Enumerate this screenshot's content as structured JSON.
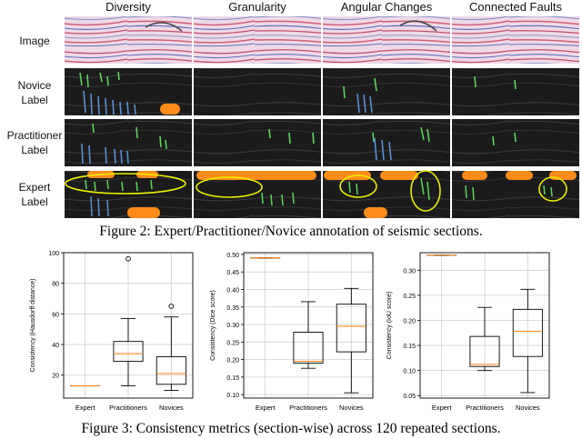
{
  "figure2": {
    "columns": [
      "Diversity",
      "Granularity",
      "Angular Changes",
      "Connected Faults"
    ],
    "rows": [
      {
        "label_lines": [
          "Image"
        ]
      },
      {
        "label_lines": [
          "Novice",
          "Label"
        ]
      },
      {
        "label_lines": [
          "Practitioner",
          "Label"
        ]
      },
      {
        "label_lines": [
          "Expert",
          "Label"
        ]
      }
    ],
    "caption": "Figure 2: Expert/Practitioner/Novice annotation of seismic sections."
  },
  "figure3": {
    "caption": "Figure 3: Consistency metrics (section-wise) across 120 repeated sections."
  },
  "colors": {
    "orange_highlight": "#ff8c1a",
    "green_label": "#5fd35f",
    "blue_label": "#5b8fd6",
    "yellow_ellipse": "#e8f000",
    "median_line": "#ff7f0e"
  },
  "chart_data": [
    {
      "type": "box",
      "categories": [
        "Expert",
        "Practitioners",
        "Novices"
      ],
      "ylabel": "Consistency (Hausdorff distance)",
      "ylim": [
        5,
        100
      ],
      "yticks": [
        20,
        40,
        60,
        80,
        100
      ],
      "grid": true,
      "boxes": [
        {
          "category": "Expert",
          "whisker_low": 13,
          "q1": 13,
          "median": 13,
          "q3": 13,
          "whisker_high": 13,
          "outliers": []
        },
        {
          "category": "Practitioners",
          "whisker_low": 13,
          "q1": 29,
          "median": 34,
          "q3": 42,
          "whisker_high": 57,
          "outliers": [
            96
          ]
        },
        {
          "category": "Novices",
          "whisker_low": 10,
          "q1": 14,
          "median": 21,
          "q3": 32,
          "whisker_high": 58,
          "outliers": [
            65
          ]
        }
      ]
    },
    {
      "type": "box",
      "categories": [
        "Expert",
        "Practitioners",
        "Novices"
      ],
      "ylabel": "Consistency (Dice score)",
      "ylim": [
        0.09,
        0.505
      ],
      "yticks": [
        0.1,
        0.15,
        0.2,
        0.25,
        0.3,
        0.35,
        0.4,
        0.45,
        0.5
      ],
      "grid": true,
      "boxes": [
        {
          "category": "Expert",
          "whisker_low": 0.49,
          "q1": 0.49,
          "median": 0.49,
          "q3": 0.49,
          "whisker_high": 0.49,
          "outliers": []
        },
        {
          "category": "Practitioners",
          "whisker_low": 0.175,
          "q1": 0.19,
          "median": 0.195,
          "q3": 0.278,
          "whisker_high": 0.365,
          "outliers": []
        },
        {
          "category": "Novices",
          "whisker_low": 0.105,
          "q1": 0.222,
          "median": 0.295,
          "q3": 0.358,
          "whisker_high": 0.403,
          "outliers": []
        }
      ]
    },
    {
      "type": "box",
      "categories": [
        "Expert",
        "Practitioners",
        "Novices"
      ],
      "ylabel": "Consistency (IoU score)",
      "ylim": [
        0.045,
        0.335
      ],
      "yticks": [
        0.05,
        0.1,
        0.15,
        0.2,
        0.25,
        0.3
      ],
      "grid": true,
      "boxes": [
        {
          "category": "Expert",
          "whisker_low": 0.33,
          "q1": 0.33,
          "median": 0.33,
          "q3": 0.33,
          "whisker_high": 0.33,
          "outliers": []
        },
        {
          "category": "Practitioners",
          "whisker_low": 0.1,
          "q1": 0.108,
          "median": 0.112,
          "q3": 0.168,
          "whisker_high": 0.226,
          "outliers": []
        },
        {
          "category": "Novices",
          "whisker_low": 0.056,
          "q1": 0.128,
          "median": 0.178,
          "q3": 0.222,
          "whisker_high": 0.262,
          "outliers": []
        }
      ]
    }
  ]
}
